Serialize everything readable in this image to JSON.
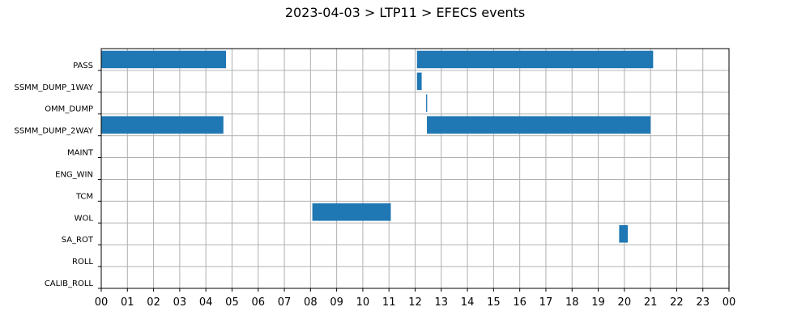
{
  "chart_data": {
    "type": "bar",
    "orientation": "horizontal",
    "title": "2023-04-03 > LTP11 > EFECS events",
    "xlabel": "",
    "ylabel": "",
    "xlim": [
      0,
      24
    ],
    "xticks": [
      "00",
      "01",
      "02",
      "03",
      "04",
      "05",
      "06",
      "07",
      "08",
      "09",
      "10",
      "11",
      "12",
      "13",
      "14",
      "15",
      "16",
      "17",
      "18",
      "19",
      "20",
      "21",
      "22",
      "23",
      "00"
    ],
    "grid": true,
    "categories": [
      "PASS",
      "SSMM_DUMP_1WAY",
      "OMM_DUMP",
      "SSMM_DUMP_2WAY",
      "MAINT",
      "ENG_WIN",
      "TCM",
      "WOL",
      "SA_ROT",
      "ROLL",
      "CALIB_ROLL"
    ],
    "events": [
      {
        "category": "PASS",
        "start": 0.0,
        "end": 4.77
      },
      {
        "category": "PASS",
        "start": 12.07,
        "end": 21.1
      },
      {
        "category": "SSMM_DUMP_1WAY",
        "start": 12.07,
        "end": 12.25
      },
      {
        "category": "OMM_DUMP",
        "start": 12.42,
        "end": 12.46
      },
      {
        "category": "SSMM_DUMP_2WAY",
        "start": 0.0,
        "end": 4.67
      },
      {
        "category": "SSMM_DUMP_2WAY",
        "start": 12.45,
        "end": 21.0
      },
      {
        "category": "WOL",
        "start": 8.07,
        "end": 11.07
      },
      {
        "category": "SA_ROT",
        "start": 19.8,
        "end": 20.13
      }
    ],
    "bar_color": "#1f77b4",
    "grid_color": "#b0b0b0"
  }
}
